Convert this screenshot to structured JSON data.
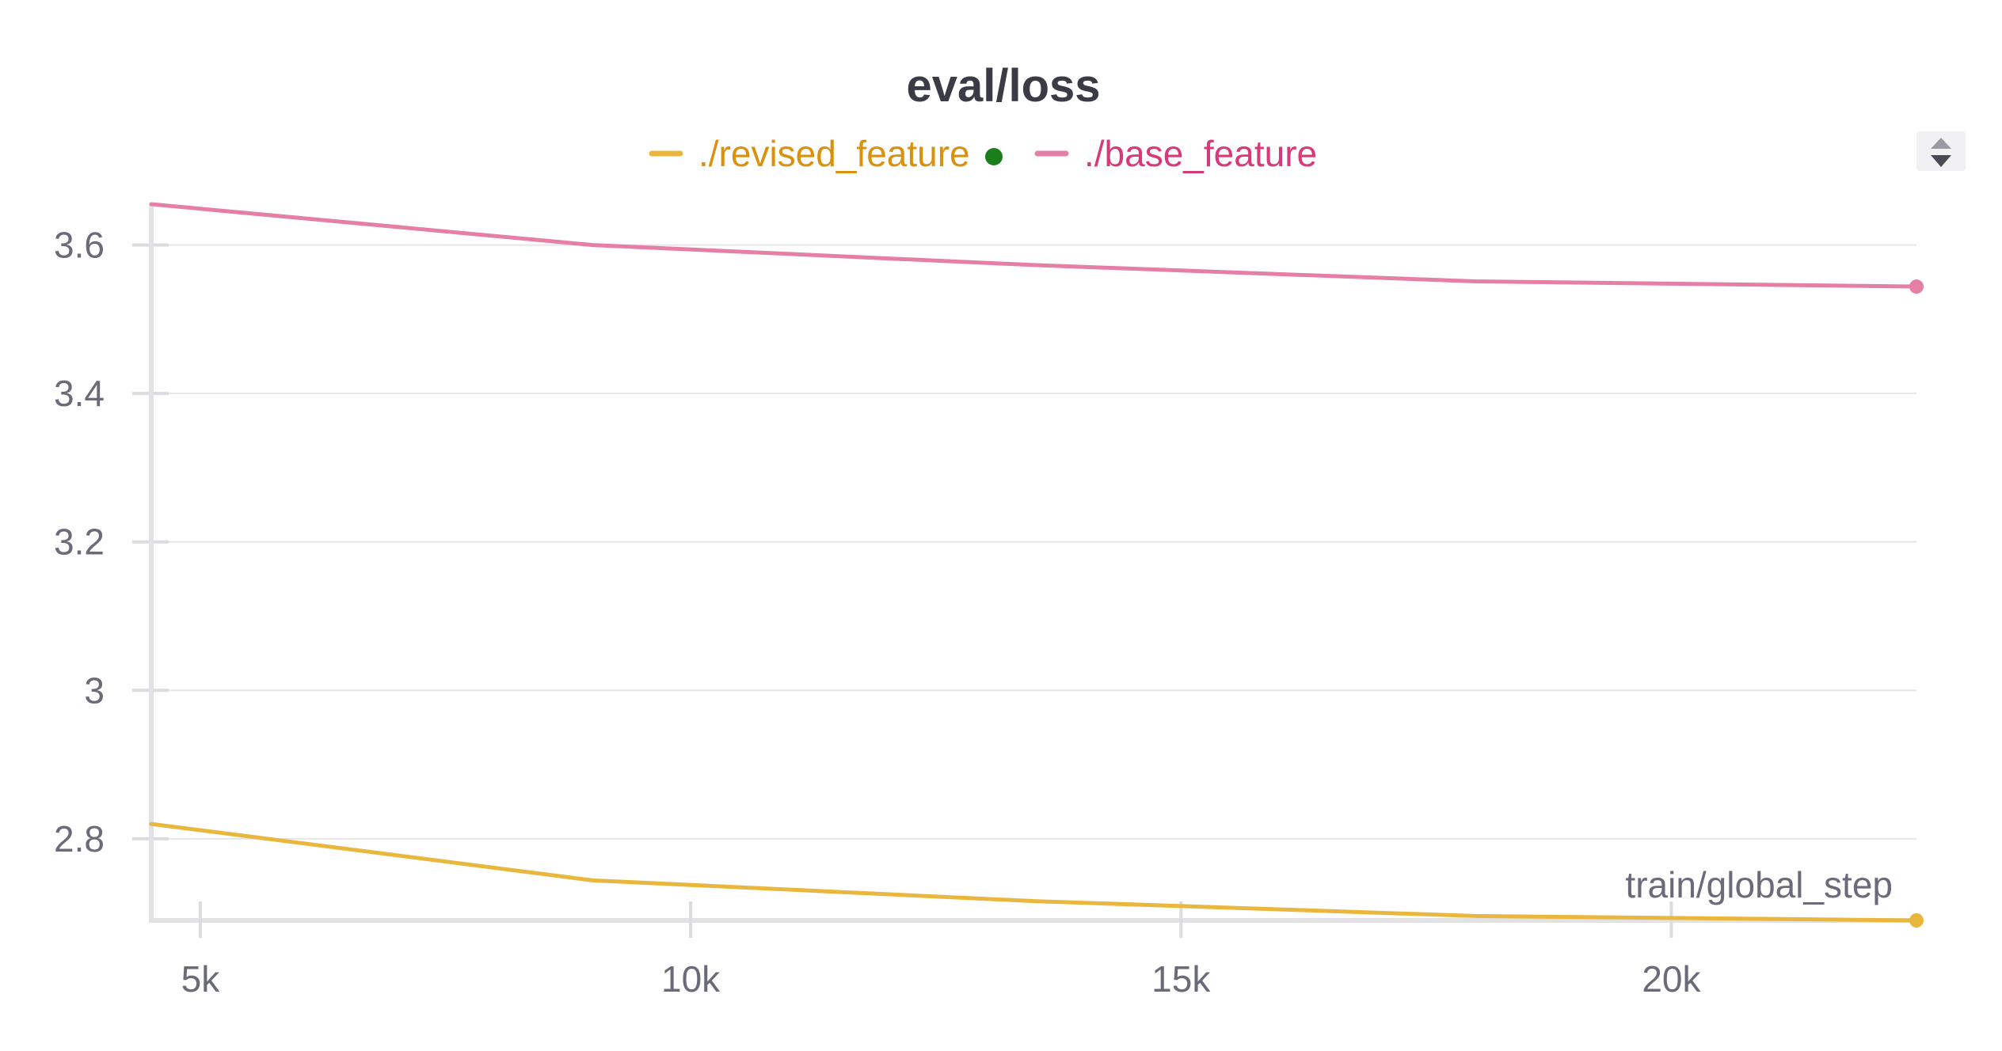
{
  "chart_data": {
    "type": "line",
    "title": "eval/loss",
    "xlabel": "train/global_step",
    "ylabel": "",
    "xlim": [
      4500,
      22500
    ],
    "ylim": [
      2.69,
      3.655
    ],
    "x_ticks": [
      {
        "value": 5000,
        "label": "5k"
      },
      {
        "value": 10000,
        "label": "10k"
      },
      {
        "value": 15000,
        "label": "15k"
      },
      {
        "value": 20000,
        "label": "20k"
      }
    ],
    "y_ticks": [
      {
        "value": 2.8,
        "label": "2.8"
      },
      {
        "value": 3.0,
        "label": "3"
      },
      {
        "value": 3.2,
        "label": "3.2"
      },
      {
        "value": 3.4,
        "label": "3.4"
      },
      {
        "value": 3.6,
        "label": "3.6"
      }
    ],
    "grid": true,
    "legend_position": "top-center",
    "series": [
      {
        "name": "./revised_feature",
        "color": "#eab73e",
        "text_color": "#d9920e",
        "status_dot_color": "#1a7f1a",
        "x": [
          4500,
          9000,
          13500,
          18000,
          22500
        ],
        "y": [
          2.82,
          2.744,
          2.716,
          2.696,
          2.69
        ]
      },
      {
        "name": "./base_feature",
        "color": "#e57fa5",
        "text_color": "#d63a78",
        "x": [
          4500,
          9000,
          13500,
          18000,
          22500
        ],
        "y": [
          3.655,
          3.6,
          3.573,
          3.551,
          3.544
        ]
      }
    ]
  },
  "controls": {
    "scroll_up_icon": "triangle-up-icon",
    "scroll_down_icon": "triangle-down-icon"
  }
}
